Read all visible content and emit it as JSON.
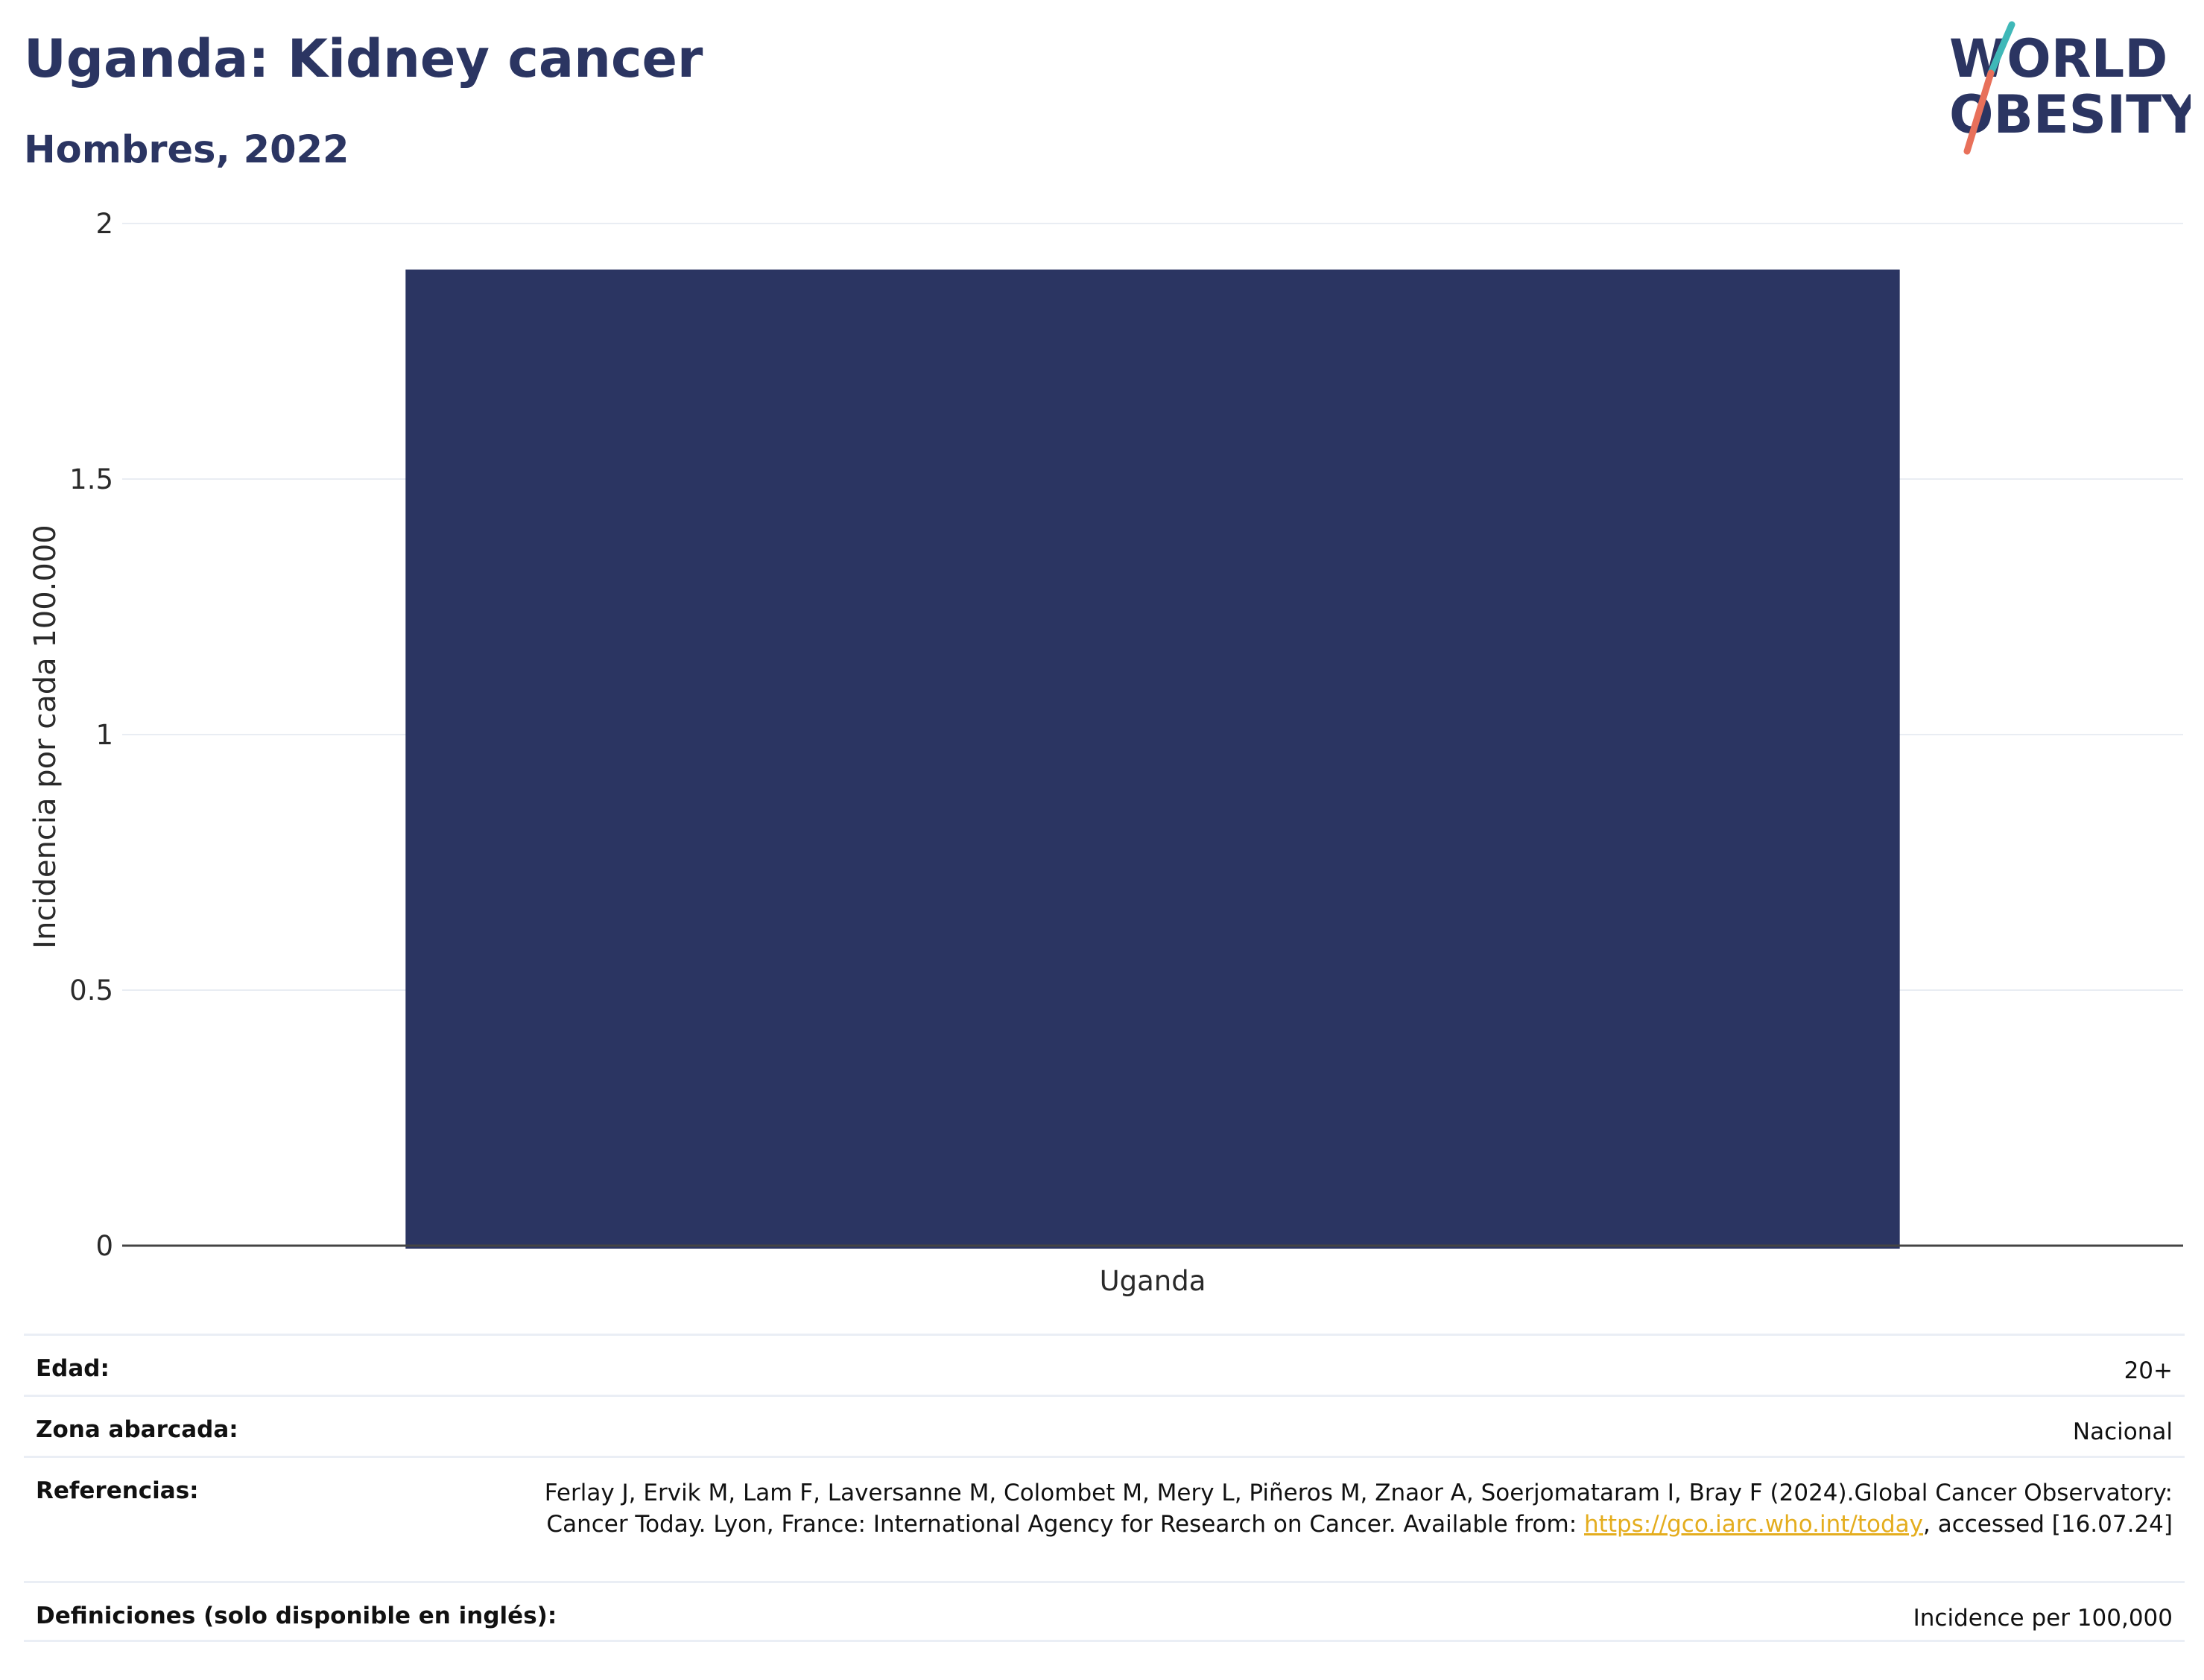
{
  "header": {
    "title": "Uganda: Kidney cancer",
    "subtitle": "Hombres, 2022"
  },
  "logo": {
    "line1": "WORLD",
    "line2": "OBESITY",
    "accent_teal": "#3fb8b8",
    "accent_coral": "#e8705a"
  },
  "chart_data": {
    "type": "bar",
    "categories": [
      "Uganda"
    ],
    "values": [
      1.91
    ],
    "ylabel": "Incidencia por cada 100.000",
    "xlabel": "",
    "ylim": [
      0,
      2
    ],
    "yticks": [
      "0",
      "0.5",
      "1",
      "1.5",
      "2"
    ],
    "ytick_values": [
      0,
      0.5,
      1,
      1.5,
      2
    ],
    "grid": true,
    "bar_color": "#2b3562"
  },
  "details": {
    "age_label": "Edad:",
    "age_value": "20+",
    "zone_label": "Zona abarcada:",
    "zone_value": "Nacional",
    "ref_label": "Referencias:",
    "ref_text_1": "Ferlay J, Ervik M, Lam F, Laversanne M, Colombet M, Mery L, Piñeros M, Znaor A, Soerjomataram I, Bray F (2024).Global Cancer Observatory: Cancer Today. Lyon, France: International Agency for Research on Cancer. Available from: ",
    "ref_link": "https://gco.iarc.who.int/today",
    "ref_text_2": ", accessed [16.07.24]",
    "def_label": "Definiciones (solo disponible en inglés):",
    "def_value": "Incidence per 100,000"
  }
}
